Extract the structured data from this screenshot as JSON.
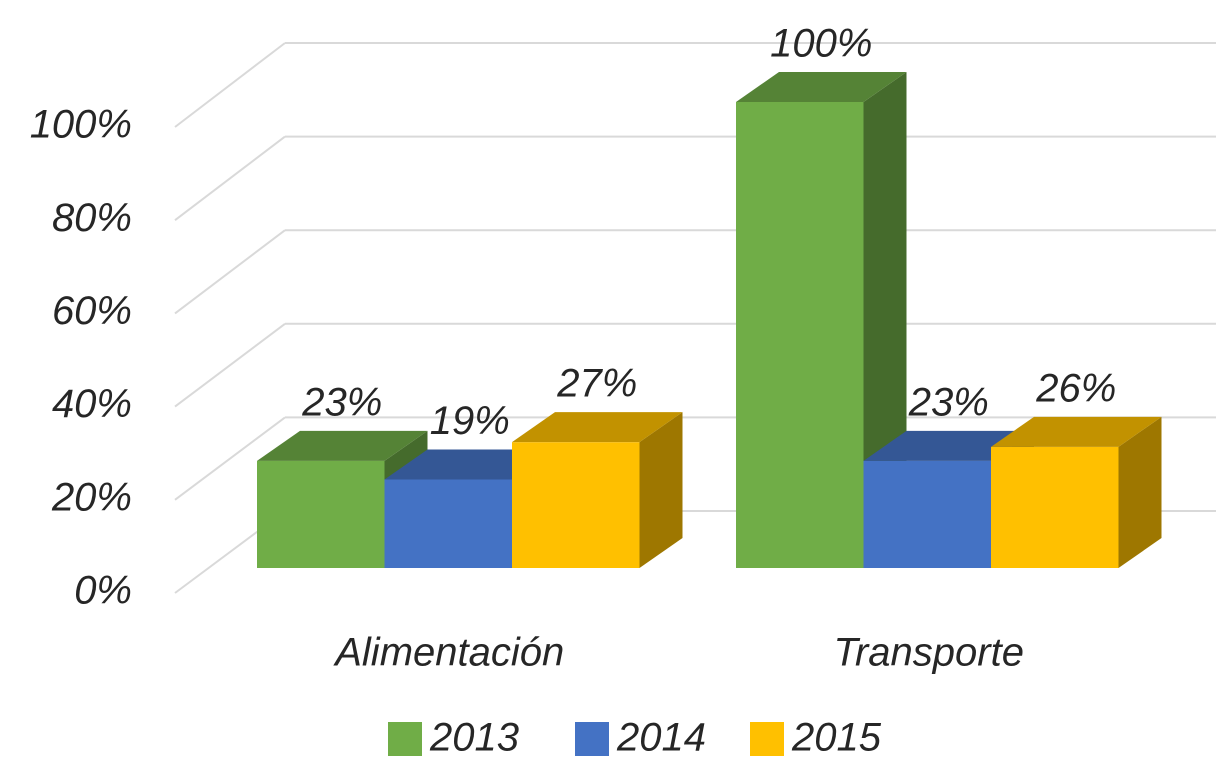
{
  "chart_data": {
    "type": "bar",
    "categories": [
      "Alimentación",
      "Transporte"
    ],
    "series": [
      {
        "name": "2013",
        "color": "#70ad47",
        "values": [
          23,
          100
        ],
        "value_labels": [
          "23%",
          "100%"
        ]
      },
      {
        "name": "2014",
        "color": "#4472c4",
        "values": [
          19,
          23
        ],
        "value_labels": [
          "19%",
          "23%"
        ]
      },
      {
        "name": "2015",
        "color": "#ffc000",
        "values": [
          27,
          26
        ],
        "value_labels": [
          "27%",
          "26%"
        ]
      }
    ],
    "ylim": [
      0,
      100
    ],
    "yticks": [
      {
        "value": 0,
        "label": "0%"
      },
      {
        "value": 20,
        "label": "20%"
      },
      {
        "value": 40,
        "label": "40%"
      },
      {
        "value": 60,
        "label": "60%"
      },
      {
        "value": 80,
        "label": "80%"
      },
      {
        "value": 100,
        "label": "100%"
      }
    ],
    "grid": true,
    "legend": "bottom"
  }
}
